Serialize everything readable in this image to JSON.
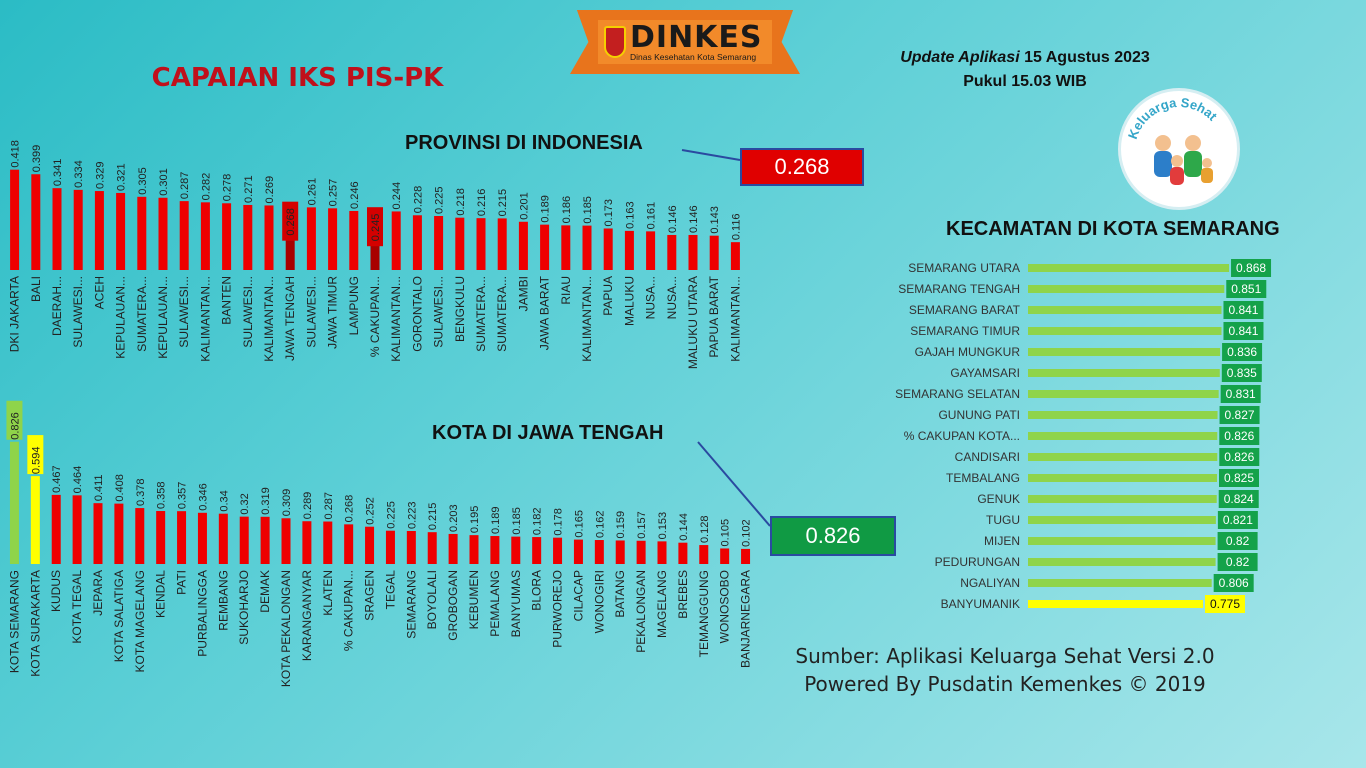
{
  "logo": {
    "title": "DINKES",
    "subtitle": "Dinas Kesehatan Kota Semarang"
  },
  "main_title": "CAPAIAN IKS PIS-PK",
  "update": {
    "label": "Update Aplikasi",
    "date": "15 Agustus 2023",
    "time": "Pukul 15.03 WIB"
  },
  "badge": {
    "text": "Keluarga Sehat"
  },
  "prov_section": {
    "title": "PROVINSI DI INDONESIA",
    "value": "0.268"
  },
  "kota_section": {
    "title": "KOTA DI JAWA TENGAH",
    "value": "0.826"
  },
  "kec_section": {
    "title": "KECAMATAN DI KOTA SEMARANG"
  },
  "source": {
    "line1": "Sumber: Aplikasi Keluarga Sehat Versi 2.0",
    "line2": "Powered By Pusdatin Kemenkes © 2019"
  },
  "colors": {
    "red": "#ee0000",
    "dark_red": "#a80000",
    "light_green": "#8fd44a",
    "yellow": "#ffff00",
    "green_label": "#14a24a"
  },
  "chart_data": [
    {
      "type": "bar",
      "orientation": "vertical",
      "title": "PROVINSI DI INDONESIA",
      "categories": [
        "DKI JAKARTA",
        "BALI",
        "DAERAH...",
        "SULAWESI...",
        "ACEH",
        "KEPULAUAN...",
        "SUMATERA...",
        "KEPULAUAN...",
        "SULAWESI...",
        "KALIMANTAN...",
        "BANTEN",
        "SULAWESI...",
        "KALIMANTAN...",
        "JAWA TENGAH",
        "SULAWESI...",
        "JAWA TIMUR",
        "LAMPUNG",
        "% CAKUPAN...",
        "KALIMANTAN...",
        "GORONTALO",
        "SULAWESI...",
        "BENGKULU",
        "SUMATERA...",
        "SUMATERA...",
        "JAMBI",
        "JAWA BARAT",
        "RIAU",
        "KALIMANTAN...",
        "PAPUA",
        "MALUKU",
        "NUSA...",
        "NUSA...",
        "MALUKU UTARA",
        "PAPUA BARAT",
        "KALIMANTAN..."
      ],
      "values": [
        0.418,
        0.399,
        0.341,
        0.334,
        0.329,
        0.321,
        0.305,
        0.301,
        0.287,
        0.282,
        0.278,
        0.271,
        0.269,
        0.268,
        0.261,
        0.257,
        0.246,
        0.245,
        0.244,
        0.228,
        0.225,
        0.218,
        0.216,
        0.215,
        0.201,
        0.189,
        0.186,
        0.185,
        0.173,
        0.163,
        0.161,
        0.146,
        0.146,
        0.143,
        0.116
      ],
      "value_labels": [
        "0.418",
        "0.399",
        "0.341",
        "0.334",
        "0.329",
        "0.321",
        "0.305",
        "0.301",
        "0.287",
        "0.282",
        "0.278",
        "0.271",
        "0.269",
        "0.268",
        "0.261",
        "0.257",
        "0.246",
        "0.245",
        "0.244",
        "0.228",
        "0.225",
        "0.218",
        "0.216",
        "0.215",
        "0.201",
        "0.189",
        "0.186",
        "0.185",
        "0.173",
        "0.163",
        "0.161",
        "0.146",
        "0.146",
        "0.143",
        "0.116"
      ],
      "highlight": {
        "13": "dark",
        "17": "dark"
      }
    },
    {
      "type": "bar",
      "orientation": "vertical",
      "title": "KOTA DI JAWA TENGAH",
      "categories": [
        "KOTA SEMARANG",
        "KOTA SURAKARTA",
        "KUDUS",
        "KOTA TEGAL",
        "JEPARA",
        "KOTA SALATIGA",
        "KOTA MAGELANG",
        "KENDAL",
        "PATI",
        "PURBALINGGA",
        "REMBANG",
        "SUKOHARJO",
        "DEMAK",
        "KOTA PEKALONGAN",
        "KARANGANYAR",
        "KLATEN",
        "% CAKUPAN...",
        "SRAGEN",
        "TEGAL",
        "SEMARANG",
        "BOYOLALI",
        "GROBOGAN",
        "KEBUMEN",
        "PEMALANG",
        "BANYUMAS",
        "BLORA",
        "PURWOREJO",
        "CILACAP",
        "WONOGIRI",
        "BATANG",
        "PEKALONGAN",
        "MAGELANG",
        "BREBES",
        "TEMANGGUNG",
        "WONOSOBO",
        "BANJARNEGARA"
      ],
      "values": [
        0.826,
        0.594,
        0.467,
        0.464,
        0.411,
        0.408,
        0.378,
        0.358,
        0.357,
        0.346,
        0.34,
        0.32,
        0.319,
        0.309,
        0.289,
        0.287,
        0.268,
        0.252,
        0.225,
        0.223,
        0.215,
        0.203,
        0.195,
        0.189,
        0.185,
        0.182,
        0.178,
        0.165,
        0.162,
        0.159,
        0.157,
        0.153,
        0.144,
        0.128,
        0.105,
        0.102
      ],
      "value_labels": [
        "0.826",
        "0.594",
        "0.467",
        "0.464",
        "0.411",
        "0.408",
        "0.378",
        "0.358",
        "0.357",
        "0.346",
        "0.34",
        "0.32",
        "0.319",
        "0.309",
        "0.289",
        "0.287",
        "0.268",
        "0.252",
        "0.225",
        "0.223",
        "0.215",
        "0.203",
        "0.195",
        "0.189",
        "0.185",
        "0.182",
        "0.178",
        "0.165",
        "0.162",
        "0.159",
        "0.157",
        "0.153",
        "0.144",
        "0.128",
        "0.105",
        "0.102"
      ],
      "highlight": {
        "0": "green",
        "1": "yellow"
      }
    },
    {
      "type": "bar",
      "orientation": "horizontal",
      "title": "KECAMATAN DI KOTA SEMARANG",
      "categories": [
        "SEMARANG UTARA",
        "SEMARANG TENGAH",
        "SEMARANG BARAT",
        "SEMARANG TIMUR",
        "GAJAH MUNGKUR",
        "GAYAMSARI",
        "SEMARANG SELATAN",
        "GUNUNG PATI",
        "% CAKUPAN KOTA...",
        "CANDISARI",
        "TEMBALANG",
        "GENUK",
        "TUGU",
        "MIJEN",
        "PEDURUNGAN",
        "NGALIYAN",
        "BANYUMANIK"
      ],
      "values": [
        0.868,
        0.851,
        0.841,
        0.841,
        0.836,
        0.835,
        0.831,
        0.827,
        0.826,
        0.826,
        0.825,
        0.824,
        0.821,
        0.82,
        0.82,
        0.806,
        0.775
      ],
      "value_labels": [
        "0.868",
        "0.851",
        "0.841",
        "0.841",
        "0.836",
        "0.835",
        "0.831",
        "0.827",
        "0.826",
        "0.826",
        "0.825",
        "0.824",
        "0.821",
        "0.82",
        "0.82",
        "0.806",
        "0.775"
      ],
      "highlight": {
        "16": "yellow"
      }
    }
  ]
}
